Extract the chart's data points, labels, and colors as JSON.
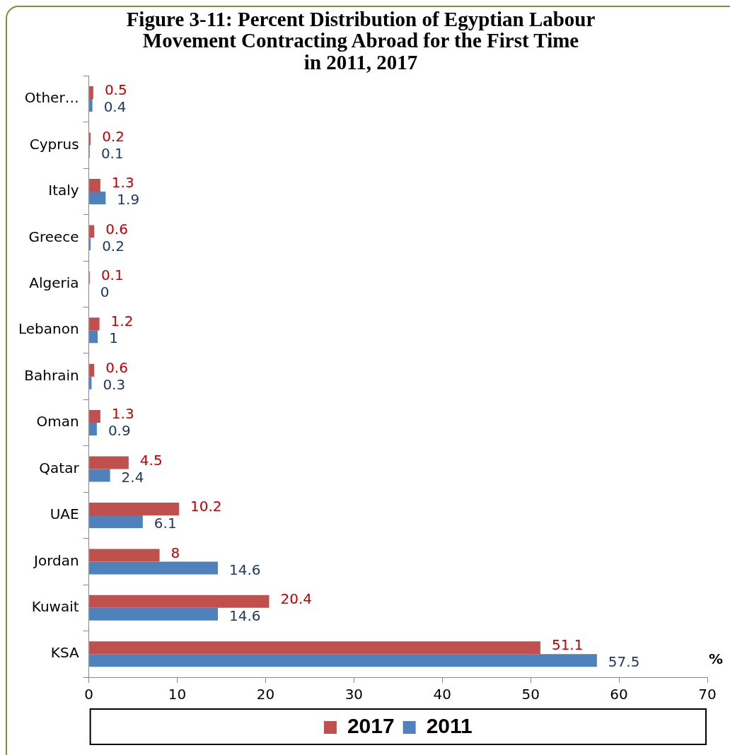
{
  "chart_data": {
    "type": "bar",
    "orientation": "horizontal",
    "title": "Figure 3-11: Percent Distribution of Egyptian Labour\nMovement Contracting Abroad for the First Time\nin 2011, 2017",
    "xlabel": "%",
    "categories": [
      "Other…",
      "Cyprus",
      "Italy",
      "Greece",
      "Algeria",
      "Lebanon",
      "Bahrain",
      "Oman",
      "Qatar",
      "UAE",
      "Jordan",
      "Kuwait",
      "KSA"
    ],
    "series": [
      {
        "name": "2017",
        "color": "#c0504d",
        "values": [
          0.5,
          0.2,
          1.3,
          0.6,
          0.1,
          1.2,
          0.6,
          1.3,
          4.5,
          10.2,
          8,
          20.4,
          51.1
        ]
      },
      {
        "name": "2011",
        "color": "#4f81bd",
        "values": [
          0.4,
          0.1,
          1.9,
          0.2,
          0,
          1,
          0.3,
          0.9,
          2.4,
          6.1,
          14.6,
          14.6,
          57.5
        ]
      }
    ],
    "xlim": [
      0,
      70
    ],
    "xticks": [
      0,
      10,
      20,
      30,
      40,
      50,
      60,
      70
    ],
    "grid": false,
    "legend": "bottom",
    "data_labels": true
  }
}
